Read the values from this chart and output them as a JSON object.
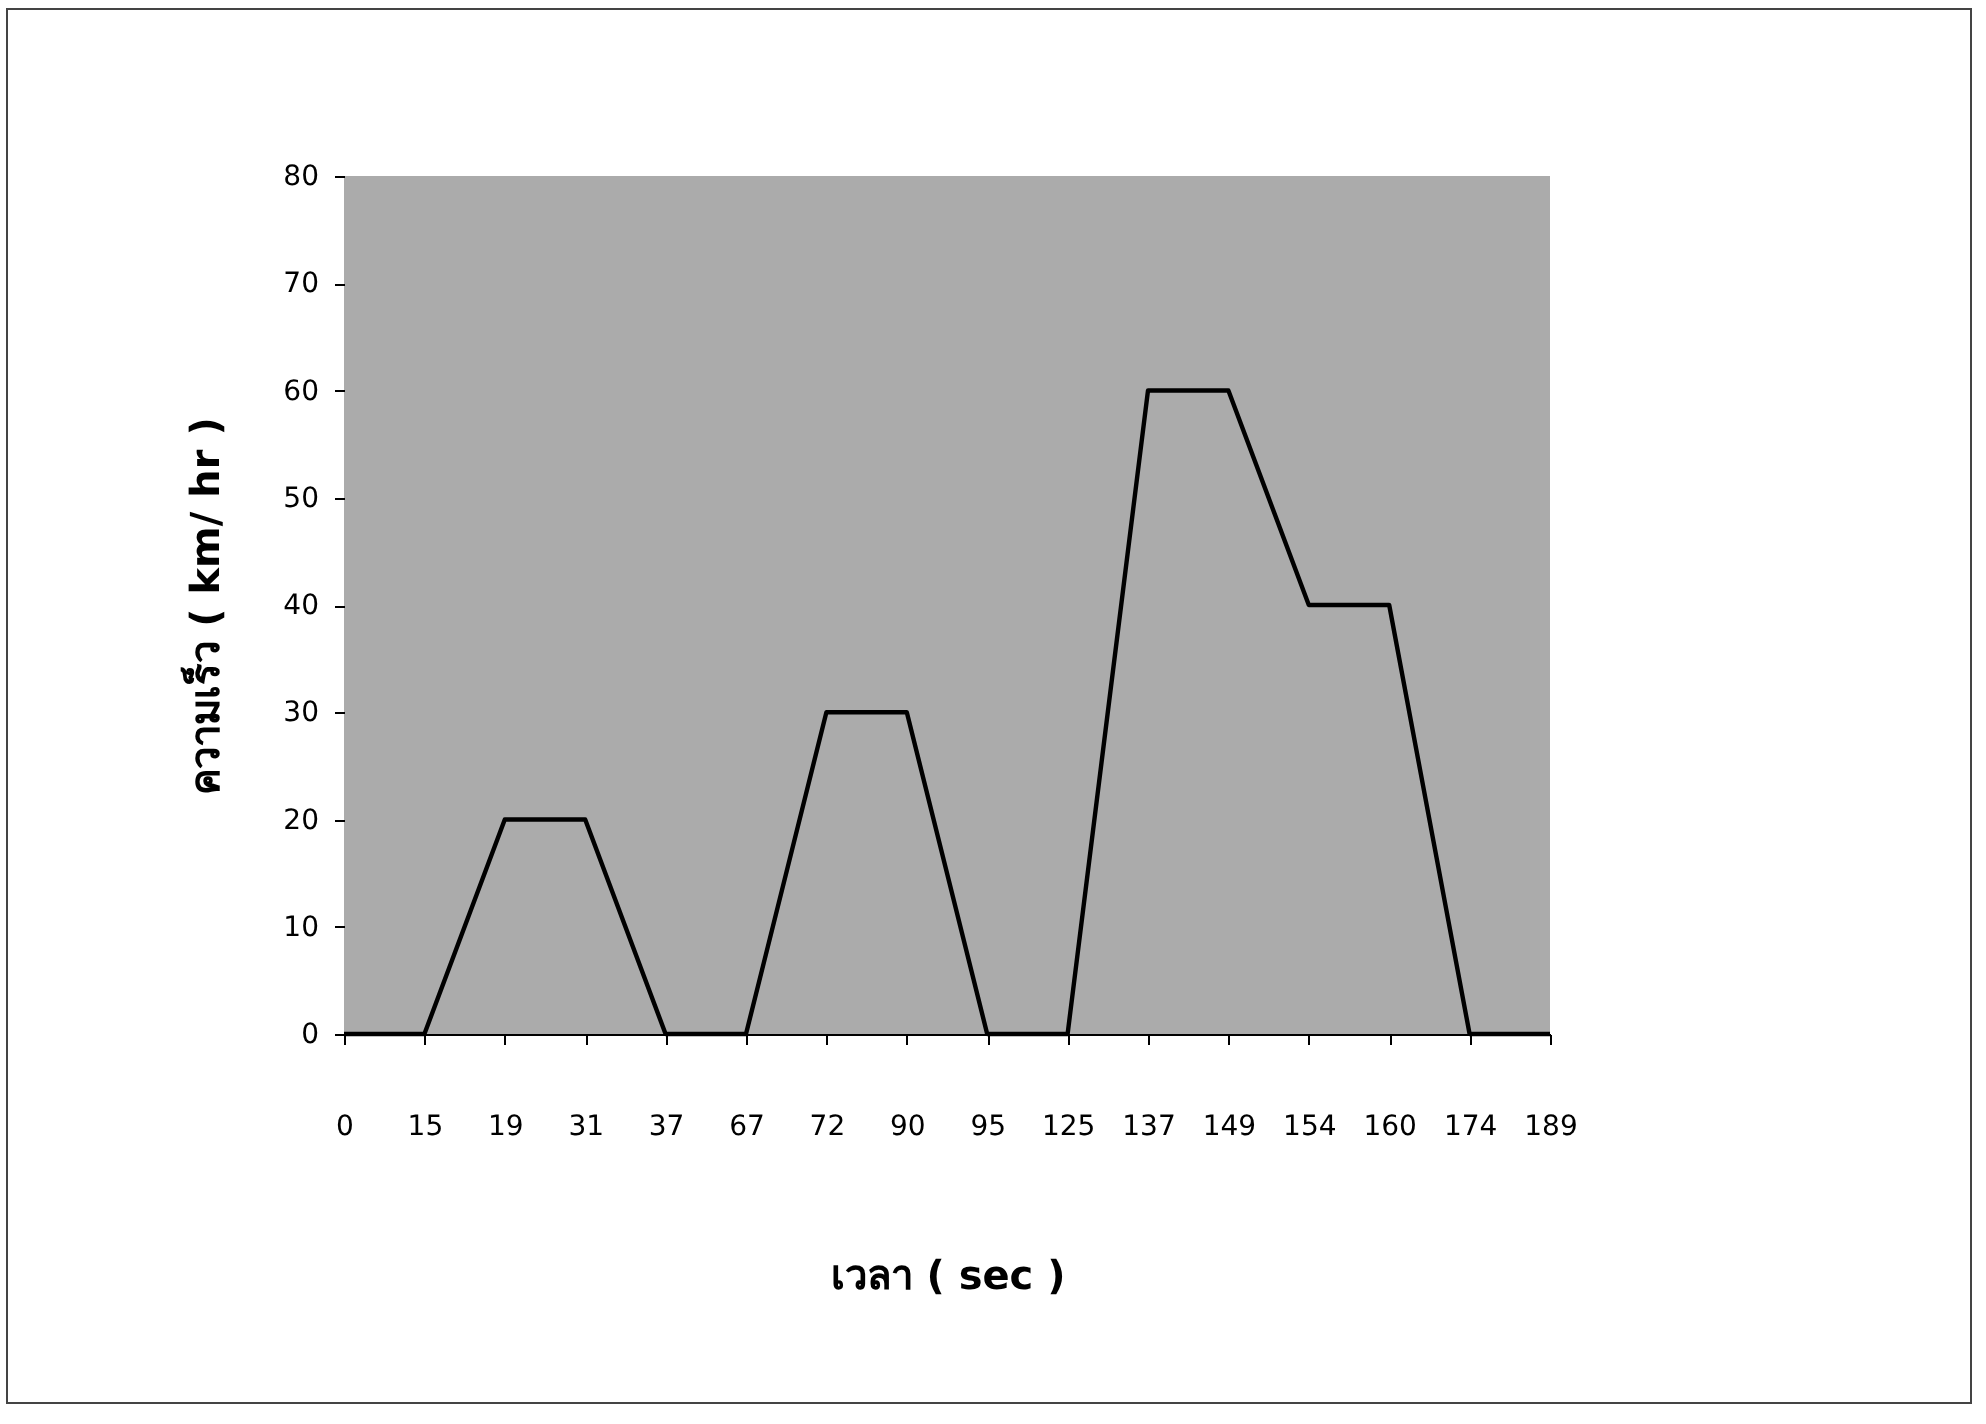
{
  "chart_data": {
    "type": "line",
    "xlabel": "เวลา ( sec )",
    "ylabel": "ความเร็ว ( km/ hr )",
    "categories": [
      "0",
      "15",
      "19",
      "31",
      "37",
      "67",
      "72",
      "90",
      "95",
      "125",
      "137",
      "149",
      "154",
      "160",
      "174",
      "189"
    ],
    "series": [
      {
        "color": "#000000",
        "values": [
          0,
          0,
          20,
          20,
          0,
          0,
          30,
          30,
          0,
          0,
          60,
          60,
          40,
          40,
          0,
          0
        ]
      }
    ],
    "ylim": [
      0,
      80
    ],
    "yticks": [
      0,
      10,
      20,
      30,
      40,
      50,
      60,
      70,
      80
    ],
    "grid": false,
    "legend": false,
    "marker": "none",
    "line_style": "solid"
  }
}
